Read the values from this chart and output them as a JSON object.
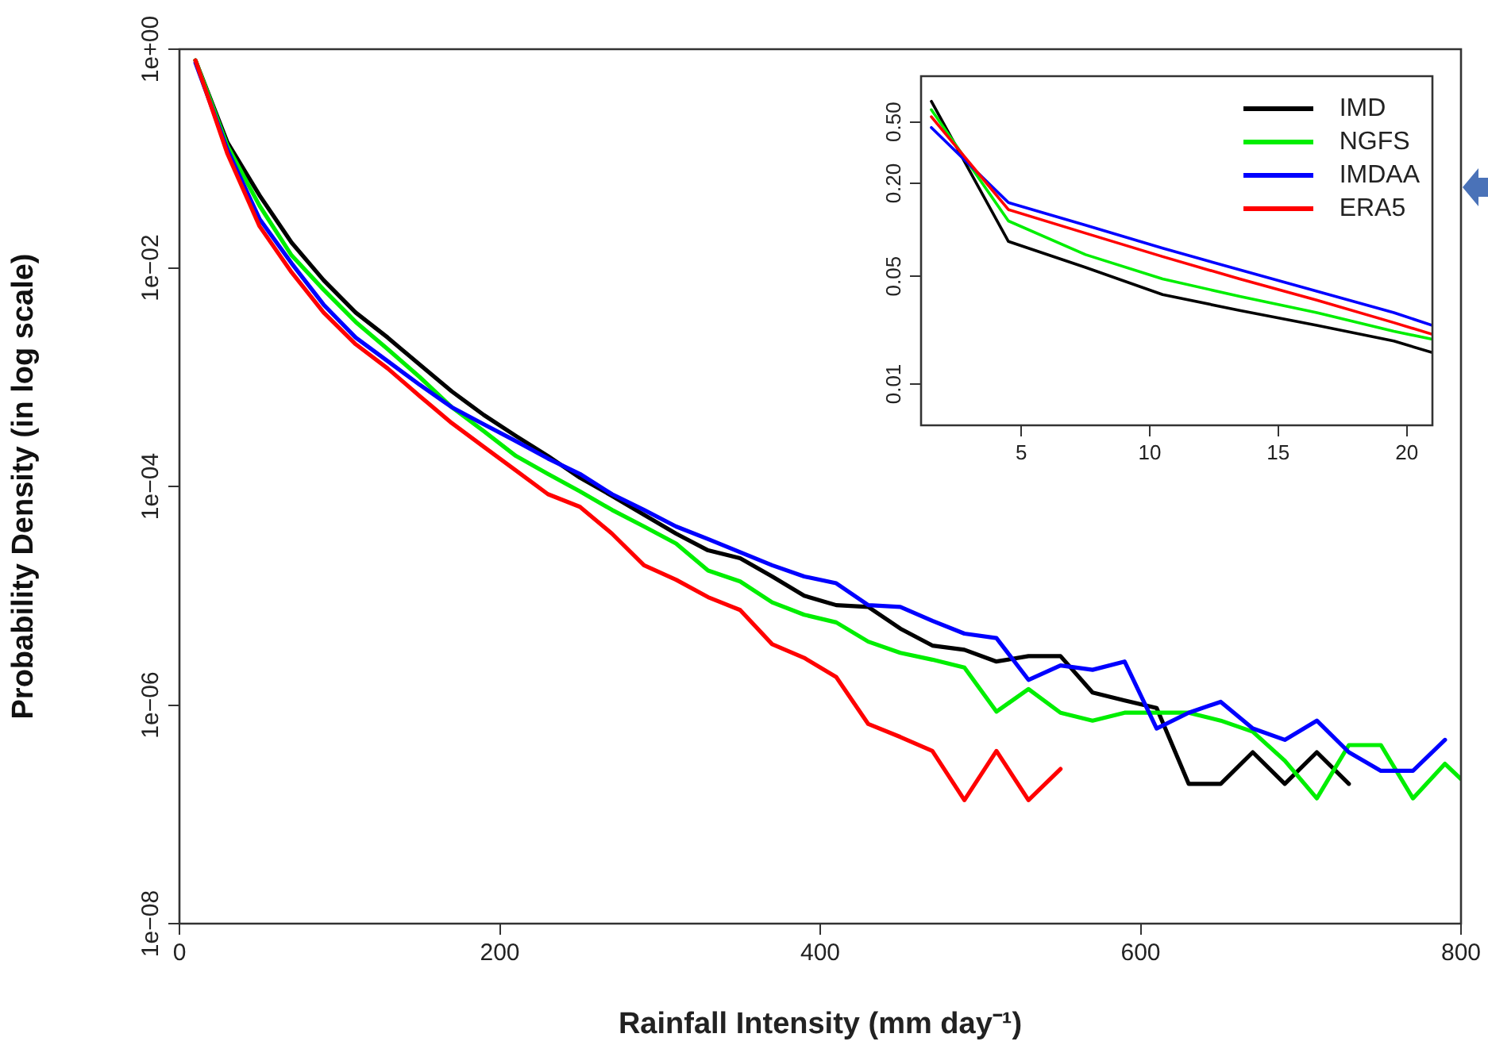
{
  "chart_data": [
    {
      "type": "line",
      "xlabel": "Rainfall Intensity (mm day⁻¹)",
      "ylabel": "Probability Density (in log scale)",
      "log": "y",
      "grid": false,
      "legend": false,
      "xlim": [
        0,
        800
      ],
      "xticks": [
        0,
        200,
        400,
        600,
        800
      ],
      "ylim": [
        1e-08,
        1
      ],
      "yticks": [
        {
          "value": 1,
          "label": "1e+00"
        },
        {
          "value": 0.01,
          "label": "1e−02"
        },
        {
          "value": 0.0001,
          "label": "1e−04"
        },
        {
          "value": 1e-06,
          "label": "1e−06"
        },
        {
          "value": 1e-08,
          "label": "1e−08"
        }
      ],
      "series": [
        {
          "color": "#000000",
          "x": [
            10,
            30,
            50,
            70,
            90,
            110,
            130,
            150,
            170,
            190,
            210,
            230,
            250,
            270,
            290,
            310,
            330,
            350,
            370,
            390,
            410,
            430,
            450,
            470,
            490,
            510,
            530,
            550,
            570,
            590,
            610,
            630,
            650,
            670,
            690,
            710,
            730
          ],
          "values": [
            0.79,
            0.14,
            0.046,
            0.017,
            0.0077,
            0.0039,
            0.0023,
            0.0013,
            0.00074,
            0.00045,
            0.00029,
            0.00019,
            0.00012,
            8.2e-05,
            5.5e-05,
            3.7e-05,
            2.6e-05,
            2.2e-05,
            1.5e-05,
            1e-05,
            8.2e-06,
            7.9e-06,
            5e-06,
            3.5e-06,
            3.2e-06,
            2.5e-06,
            2.8e-06,
            2.8e-06,
            1.3e-06,
            1.1e-06,
            9.4e-07,
            1.9e-07,
            1.9e-07,
            3.7e-07,
            1.9e-07,
            3.7e-07,
            1.9e-07
          ]
        },
        {
          "color": "#00ee00",
          "x": [
            10,
            30,
            50,
            70,
            90,
            110,
            130,
            150,
            170,
            190,
            210,
            230,
            250,
            270,
            290,
            310,
            330,
            350,
            370,
            390,
            410,
            430,
            450,
            470,
            490,
            510,
            530,
            550,
            570,
            590,
            610,
            630,
            650,
            670,
            690,
            710,
            730,
            750,
            770,
            790,
            800
          ],
          "values": [
            0.79,
            0.13,
            0.037,
            0.013,
            0.0063,
            0.0032,
            0.0018,
            0.001,
            0.00053,
            0.00032,
            0.00019,
            0.00013,
            9e-05,
            6.1e-05,
            4.3e-05,
            3e-05,
            1.7e-05,
            1.35e-05,
            8.7e-06,
            6.7e-06,
            5.7e-06,
            3.8e-06,
            3e-06,
            2.6e-06,
            2.2e-06,
            8.7e-07,
            1.4e-06,
            8.5e-07,
            7.2e-07,
            8.5e-07,
            8.5e-07,
            8.5e-07,
            7.2e-07,
            5.7e-07,
            3.1e-07,
            1.4e-07,
            4.3e-07,
            4.3e-07,
            1.4e-07,
            2.9e-07,
            2.1e-07
          ]
        },
        {
          "color": "#0000ff",
          "x": [
            10,
            30,
            50,
            70,
            90,
            110,
            130,
            150,
            170,
            190,
            210,
            230,
            250,
            270,
            290,
            310,
            330,
            350,
            370,
            390,
            410,
            430,
            450,
            470,
            490,
            510,
            530,
            550,
            570,
            590,
            610,
            630,
            650,
            670,
            690,
            710,
            730,
            750,
            770,
            790
          ],
          "values": [
            0.75,
            0.12,
            0.028,
            0.011,
            0.0046,
            0.0023,
            0.0014,
            0.00085,
            0.00053,
            0.00037,
            0.00026,
            0.00018,
            0.00013,
            8.5e-05,
            6.1e-05,
            4.3e-05,
            3.3e-05,
            2.5e-05,
            1.9e-05,
            1.5e-05,
            1.3e-05,
            8.2e-06,
            7.9e-06,
            5.9e-06,
            4.5e-06,
            4.1e-06,
            1.7e-06,
            2.3e-06,
            2.1e-06,
            2.5e-06,
            6.1e-07,
            8.5e-07,
            1.07e-06,
            6.1e-07,
            4.8e-07,
            7.2e-07,
            3.7e-07,
            2.5e-07,
            2.5e-07,
            4.8e-07
          ]
        },
        {
          "color": "#ff0000",
          "x": [
            10,
            30,
            50,
            70,
            90,
            110,
            130,
            150,
            170,
            190,
            210,
            230,
            250,
            270,
            290,
            310,
            330,
            350,
            370,
            390,
            410,
            430,
            450,
            470,
            490,
            510,
            530,
            550
          ],
          "values": [
            0.79,
            0.11,
            0.024,
            0.0091,
            0.0039,
            0.002,
            0.0012,
            0.00067,
            0.00038,
            0.00023,
            0.00014,
            8.5e-05,
            6.5e-05,
            3.7e-05,
            1.9e-05,
            1.4e-05,
            9.7e-06,
            7.4e-06,
            3.6e-06,
            2.7e-06,
            1.8e-06,
            6.7e-07,
            5.1e-07,
            3.8e-07,
            1.35e-07,
            3.8e-07,
            1.35e-07,
            2.6e-07
          ]
        }
      ]
    },
    {
      "type": "line",
      "log": "y",
      "grid": false,
      "legend": "top right",
      "xlim": [
        1.1,
        21
      ],
      "xticks": [
        5,
        10,
        15,
        20
      ],
      "ylim": [
        0.0054,
        0.99
      ],
      "yticks": [
        {
          "value": 0.01,
          "label": "0.01"
        },
        {
          "value": 0.05,
          "label": "0.05"
        },
        {
          "value": 0.2,
          "label": "0.20"
        },
        {
          "value": 0.5,
          "label": "0.50"
        }
      ],
      "x": [
        1.5,
        4.5,
        7.5,
        10.5,
        13.5,
        16.5,
        19.5,
        21
      ],
      "series": [
        {
          "name": "IMD",
          "color": "#000000",
          "values": [
            0.68,
            0.084,
            0.057,
            0.038,
            0.03,
            0.024,
            0.019,
            0.016
          ]
        },
        {
          "name": "NGFS",
          "color": "#00ee00",
          "values": [
            0.6,
            0.114,
            0.069,
            0.048,
            0.037,
            0.029,
            0.022,
            0.0195
          ]
        },
        {
          "name": "IMDAA",
          "color": "#0000ff",
          "values": [
            0.46,
            0.15,
            0.107,
            0.076,
            0.055,
            0.04,
            0.029,
            0.024
          ]
        },
        {
          "name": "ERA5",
          "color": "#ff0000",
          "values": [
            0.54,
            0.135,
            0.095,
            0.067,
            0.048,
            0.035,
            0.025,
            0.021
          ]
        }
      ]
    }
  ]
}
